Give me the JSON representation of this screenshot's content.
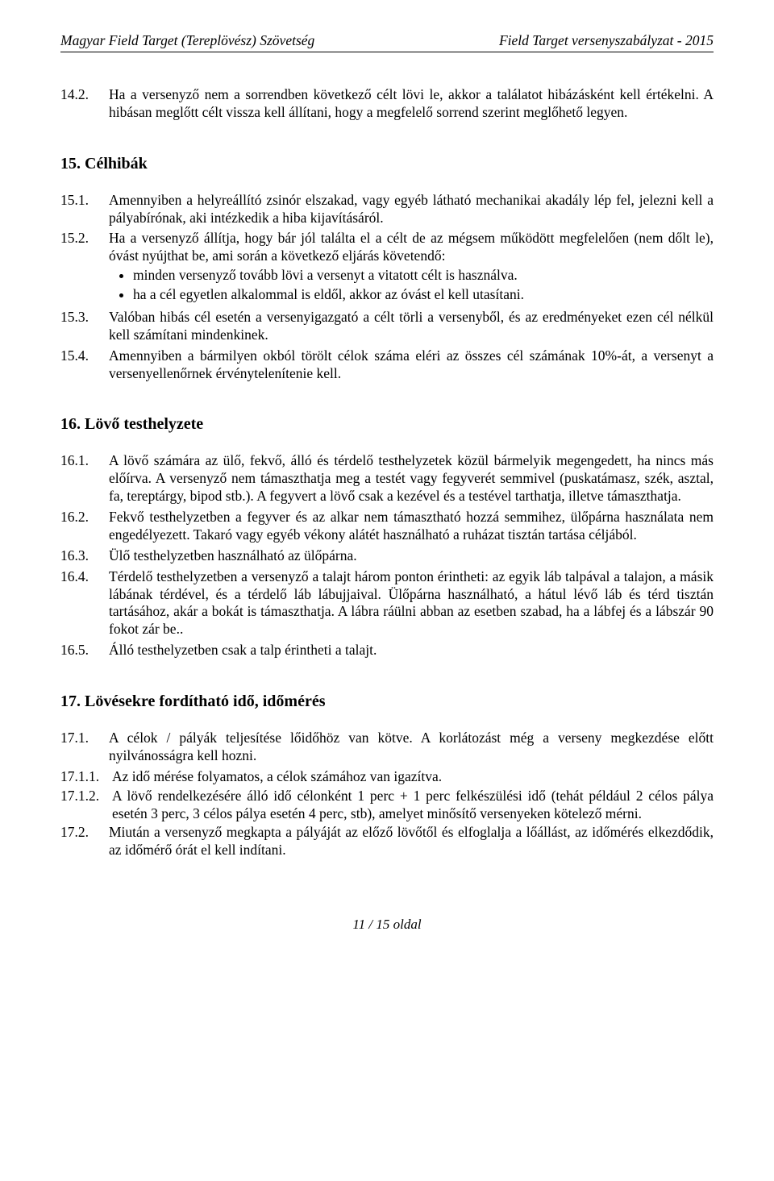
{
  "header": {
    "left": "Magyar Field Target (Tereplövész) Szövetség",
    "right": "Field Target versenyszabályzat - 2015"
  },
  "para14_2": {
    "num": "14.2.",
    "text": "Ha a versenyző nem a sorrendben következő célt lövi le, akkor a találatot hibázásként kell értékelni. A hibásan meglőtt célt vissza kell állítani, hogy a megfelelő sorrend szerint meglőhető legyen."
  },
  "section15": {
    "title": "15. Célhibák",
    "items": {
      "i1": {
        "num": "15.1.",
        "text": "Amennyiben a helyreállító zsinór elszakad, vagy egyéb látható mechanikai akadály lép fel, jelezni kell a pályabírónak, aki intézkedik a hiba kijavításáról."
      },
      "i2": {
        "num": "15.2.",
        "text": "Ha a versenyző állítja, hogy bár jól találta el a célt de az mégsem működött megfelelően (nem dőlt le), óvást nyújthat be, ami során a következő eljárás követendő:",
        "bullets": {
          "b1": "minden versenyző tovább lövi a versenyt a vitatott célt is használva.",
          "b2": "ha a cél egyetlen alkalommal is eldől, akkor az óvást el kell utasítani."
        }
      },
      "i3": {
        "num": "15.3.",
        "text": "Valóban hibás cél esetén a versenyigazgató a célt törli a versenyből, és az eredményeket ezen cél nélkül kell számítani mindenkinek."
      },
      "i4": {
        "num": "15.4.",
        "text": "Amennyiben a bármilyen okból törölt célok száma eléri az összes cél számának 10%-át, a versenyt a versenyellenőrnek érvénytelenítenie kell."
      }
    }
  },
  "section16": {
    "title": "16. Lövő testhelyzete",
    "items": {
      "i1": {
        "num": "16.1.",
        "text": "A lövő számára az ülő, fekvő, álló és térdelő testhelyzetek közül bármelyik megengedett, ha nincs más előírva. A versenyző nem támaszthatja meg a testét vagy fegyverét semmivel (puskatámasz, szék, asztal, fa, tereptárgy, bipod stb.). A fegyvert a lövő csak a kezével és a testével tarthatja, illetve támaszthatja."
      },
      "i2": {
        "num": "16.2.",
        "text": "Fekvő testhelyzetben a fegyver és az alkar nem támasztható hozzá semmihez, ülőpárna használata nem engedélyezett. Takaró vagy egyéb vékony alátét használható a ruházat tisztán tartása céljából."
      },
      "i3": {
        "num": "16.3.",
        "text": "Ülő testhelyzetben használható az ülőpárna."
      },
      "i4": {
        "num": "16.4.",
        "text": "Térdelő testhelyzetben a versenyző a talajt három ponton érintheti: az egyik láb talpával a talajon, a másik lábának térdével, és a térdelő láb lábujjaival. Ülőpárna használható, a hátul lévő láb és térd tisztán tartásához, akár a bokát is támaszthatja. A lábra ráülni abban az esetben szabad, ha a lábfej és a lábszár 90 fokot zár be.."
      },
      "i5": {
        "num": "16.5.",
        "text": "Álló testhelyzetben csak a talp érintheti a talajt."
      }
    }
  },
  "section17": {
    "title": "17. Lövésekre fordítható idő, időmérés",
    "items": {
      "i1": {
        "num": "17.1.",
        "text": "A célok / pályák teljesítése lőidőhöz van kötve. A korlátozást még a verseny megkezdése előtt nyilvánosságra kell hozni."
      },
      "i1_1": {
        "num": "17.1.1.",
        "text": "Az idő mérése folyamatos, a célok számához van igazítva."
      },
      "i1_2": {
        "num": "17.1.2.",
        "text": "A lövő rendelkezésére álló idő célonként 1 perc + 1 perc felkészülési idő (tehát például 2 célos pálya esetén 3 perc, 3 célos pálya esetén 4 perc, stb), amelyet minősítő versenyeken kötelező mérni."
      },
      "i2": {
        "num": "17.2.",
        "text": "Miután a versenyző megkapta a pályáját az előző lövőtől és elfoglalja a lőállást, az időmérés elkezdődik, az időmérő órát el kell indítani."
      }
    }
  },
  "footer": "11 / 15 oldal"
}
